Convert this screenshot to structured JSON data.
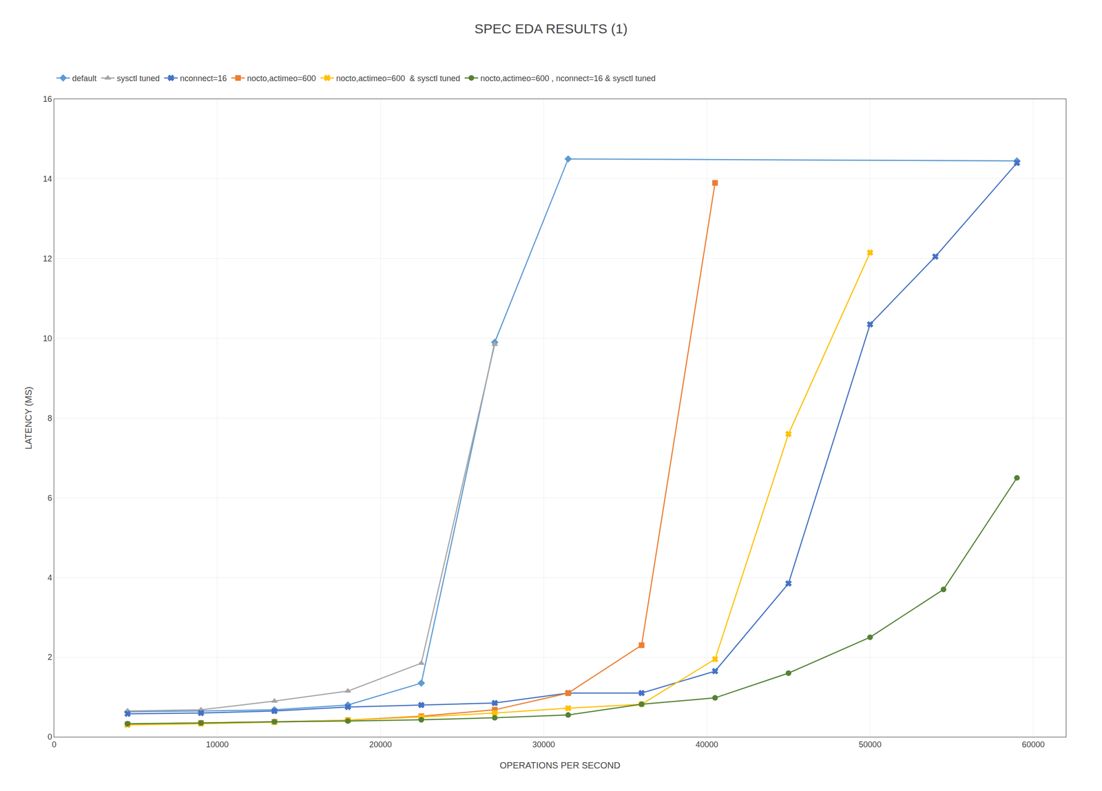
{
  "chart_data": {
    "type": "line",
    "title": "SPEC EDA RESULTS (1)",
    "x_label": "OPERATIONS PER SECOND",
    "y_label": "LATENCY (MS)",
    "xlim": [
      0,
      62000
    ],
    "ylim": [
      0,
      16
    ],
    "xticks": [
      0,
      10000,
      20000,
      30000,
      40000,
      50000,
      60000
    ],
    "yticks": [
      0,
      2,
      4,
      6,
      8,
      10,
      12,
      14,
      16
    ],
    "grid": true,
    "legend": "upper left",
    "series": [
      {
        "name": "default",
        "color": "#5B9BD5",
        "marker": "diamond",
        "x": [
          4500,
          9000,
          13500,
          18000,
          22500,
          27000,
          31500,
          59000
        ],
        "values": [
          0.63,
          0.65,
          0.68,
          0.8,
          1.35,
          9.9,
          14.5,
          14.45
        ]
      },
      {
        "name": "sysctl tuned",
        "color": "#A5A5A5",
        "marker": "triangle-up",
        "x": [
          4500,
          9000,
          13500,
          18000,
          22500,
          27000
        ],
        "values": [
          0.65,
          0.68,
          0.9,
          1.15,
          1.85,
          9.85
        ]
      },
      {
        "name": "nconnect=16",
        "color": "#4472C4",
        "marker": "x",
        "x": [
          4500,
          9000,
          13500,
          18000,
          22500,
          27000,
          31500,
          36000,
          40500,
          45000,
          50000,
          54000,
          59000
        ],
        "values": [
          0.58,
          0.6,
          0.65,
          0.75,
          0.8,
          0.85,
          1.1,
          1.1,
          1.65,
          3.85,
          10.35,
          12.05,
          14.4
        ]
      },
      {
        "name": "nocto,actimeo=600",
        "color": "#ED7D31",
        "marker": "square",
        "x": [
          4500,
          9000,
          13500,
          18000,
          22500,
          27000,
          31500,
          36000,
          40500
        ],
        "values": [
          0.32,
          0.35,
          0.38,
          0.42,
          0.52,
          0.68,
          1.1,
          2.3,
          13.9
        ]
      },
      {
        "name": "nocto,actimeo=600  & sysctl tuned",
        "color": "#FFC000",
        "marker": "x",
        "x": [
          4500,
          9000,
          13500,
          18000,
          22500,
          27000,
          31500,
          36000,
          40500,
          45000,
          50000
        ],
        "values": [
          0.3,
          0.33,
          0.37,
          0.42,
          0.5,
          0.6,
          0.72,
          0.82,
          1.95,
          7.6,
          12.15
        ]
      },
      {
        "name": "nocto,actimeo=600 , nconnect=16 & sysctl tuned",
        "color": "#548235",
        "marker": "circle",
        "x": [
          4500,
          9000,
          13500,
          18000,
          22500,
          27000,
          31500,
          36000,
          40500,
          45000,
          50000,
          54500,
          59000
        ],
        "values": [
          0.33,
          0.35,
          0.38,
          0.4,
          0.43,
          0.48,
          0.55,
          0.82,
          0.98,
          1.6,
          2.5,
          3.7,
          6.5
        ]
      }
    ]
  }
}
